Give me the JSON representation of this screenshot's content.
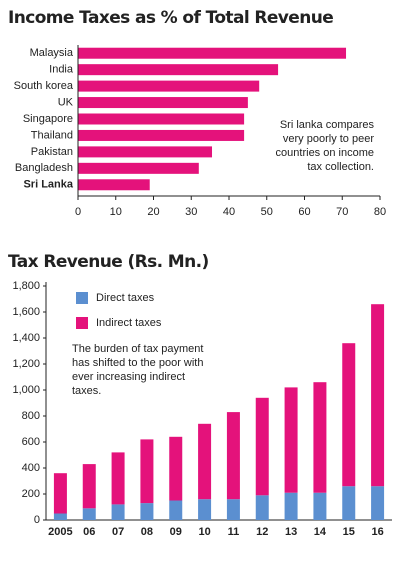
{
  "chart_data": [
    {
      "type": "hbar",
      "title": "Income Taxes as % of Total Revenue",
      "categories": [
        "Malaysia",
        "India",
        "South korea",
        "UK",
        "Singapore",
        "Thailand",
        "Pakistan",
        "Bangladesh",
        "Sri Lanka"
      ],
      "values": [
        71,
        53,
        48,
        45,
        44,
        44,
        35.5,
        32,
        19
      ],
      "color": "#e4127b",
      "xlim": [
        0,
        80
      ],
      "xticks": [
        0,
        10,
        20,
        30,
        40,
        50,
        60,
        70,
        80
      ],
      "annotation": "Sri lanka compares very poorly to peer countries on income tax collection."
    },
    {
      "type": "stacked-bar",
      "title": "Tax Revenue (Rs. Mn.)",
      "categories": [
        "2005",
        "06",
        "07",
        "08",
        "09",
        "10",
        "11",
        "12",
        "13",
        "14",
        "15",
        "16"
      ],
      "series": [
        {
          "name": "Direct taxes",
          "color": "#5b8fd0",
          "values": [
            50,
            90,
            120,
            130,
            150,
            160,
            160,
            190,
            210,
            210,
            260,
            260
          ]
        },
        {
          "name": "Indirect taxes",
          "color": "#e4127b",
          "values": [
            310,
            340,
            400,
            490,
            490,
            580,
            670,
            750,
            810,
            850,
            1100,
            1400
          ]
        }
      ],
      "ylim": [
        0,
        1800
      ],
      "yticks": [
        0,
        200,
        400,
        600,
        800,
        {
          "value": 1000,
          "label": "1,000"
        },
        {
          "value": 1200,
          "label": "1,200"
        },
        {
          "value": 1400,
          "label": "1,400"
        },
        {
          "value": 1600,
          "label": "1,600"
        },
        {
          "value": 1800,
          "label": "1,800"
        }
      ],
      "annotation": "The burden of tax payment has shifted to the poor with ever increasing indirect taxes."
    }
  ]
}
